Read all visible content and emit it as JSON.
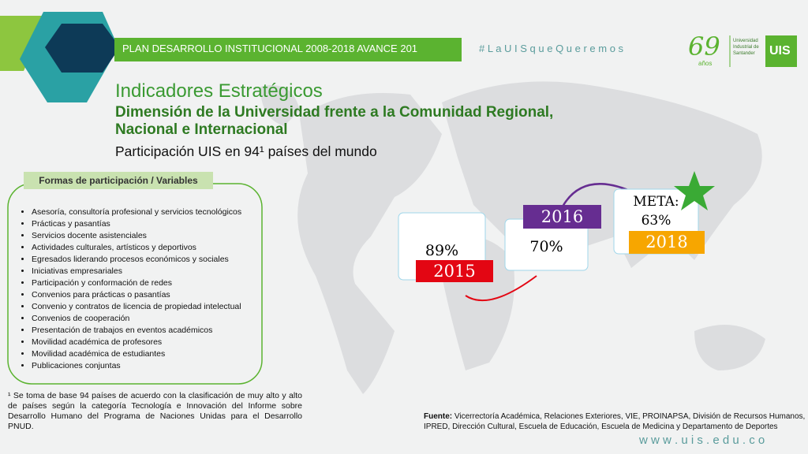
{
  "header": {
    "banner": "PLAN DESARROLLO INSTITUCIONAL 2008-2018 AVANCE 201",
    "hashtag": "# L a U I S q u e Q u e r e m o s",
    "anniversary": "69",
    "anniversary_sub": "años",
    "university": "Universidad Industrial de Santander",
    "logo": "UIS"
  },
  "title": "Indicadores Estratégicos",
  "subtitle": "Dimensión de la Universidad frente a la Comunidad Regional, Nacional e Internacional",
  "participation": "Participación UIS en 94¹ países del mundo",
  "variables": {
    "heading": "Formas de participación / Variables",
    "items": [
      "Asesoría, consultoría profesional y servicios tecnológicos",
      "Prácticas y pasantías",
      "Servicios docente asistenciales",
      "Actividades culturales, artísticos y deportivos",
      "Egresados liderando procesos económicos y sociales",
      "Iniciativas empresariales",
      "Participación y conformación de redes",
      "Convenios para prácticas o pasantías",
      "Convenio y contratos de licencia de propiedad intelectual",
      "Convenios de cooperación",
      "Presentación de trabajos en eventos académicos",
      "Movilidad académica de profesores",
      "Movilidad académica de estudiantes",
      "Publicaciones conjuntas"
    ]
  },
  "progress": [
    {
      "year": "2015",
      "value": "89%"
    },
    {
      "year": "2016",
      "value": "70%"
    },
    {
      "year": "2018",
      "label": "META:",
      "value": "63%"
    }
  ],
  "footnote": "¹ Se toma de base 94 países de acuerdo con la clasificación de muy alto y alto de países según la categoría Tecnología e Innovación del Informe sobre Desarrollo Humano del Programa de Naciones Unidas para el Desarrollo PNUD.",
  "source": {
    "label": "Fuente:",
    "text": " Vicerrectoría Académica, Relaciones Exteriores, VIE, PROINAPSA, División de Recursos Humanos, IPRED, Dirección Cultural, Escuela de Educación, Escuela de Medicina y Departamento de Deportes"
  },
  "website": "w w w . u i s . e d u . c o"
}
